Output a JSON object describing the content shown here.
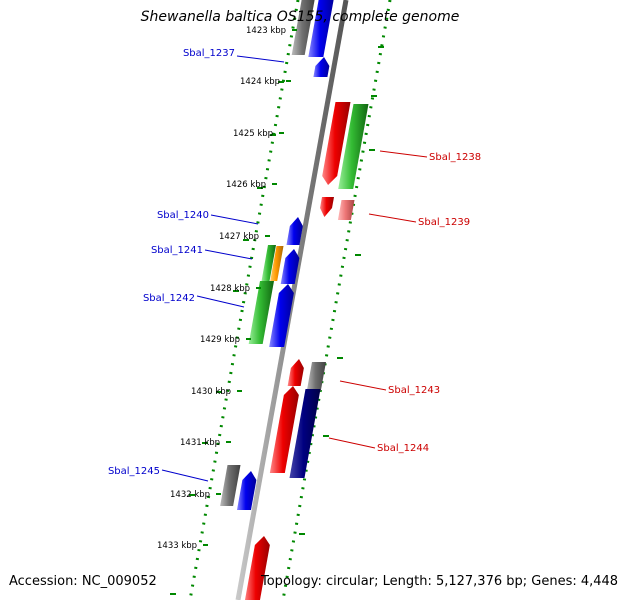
{
  "title": "Shewanella baltica OS155, complete genome",
  "accession": "Accession: NC_009052",
  "summary": "Topology: circular; Length: 5,127,376 bp; Genes: 4,448",
  "colors": {
    "blue_label": "#0000cc",
    "red_label": "#cc0000",
    "gene_red": "#ee0000",
    "gene_blue": "#0000ee",
    "gene_navy": "#000080",
    "gene_green": "#33bb33",
    "gene_gray": "#707070",
    "gene_orange": "#ff9900",
    "gene_pink": "#ee7777",
    "backbone": "#909090",
    "ring_dots": "#008800"
  },
  "scale_ticks": [
    "1423 kbp",
    "1424 kbp",
    "1425 kbp",
    "1426 kbp",
    "1427 kbp",
    "1428 kbp",
    "1429 kbp",
    "1430 kbp",
    "1431 kbp",
    "1432 kbp",
    "1433 kbp"
  ],
  "gene_labels": [
    {
      "text": "Sbal_1237",
      "color": "blue"
    },
    {
      "text": "Sbal_1238",
      "color": "red"
    },
    {
      "text": "Sbal_1239",
      "color": "red"
    },
    {
      "text": "Sbal_1240",
      "color": "blue"
    },
    {
      "text": "Sbal_1241",
      "color": "blue"
    },
    {
      "text": "Sbal_1242",
      "color": "blue"
    },
    {
      "text": "Sbal_1243",
      "color": "red"
    },
    {
      "text": "Sbal_1244",
      "color": "red"
    },
    {
      "text": "Sbal_1245",
      "color": "blue"
    }
  ]
}
